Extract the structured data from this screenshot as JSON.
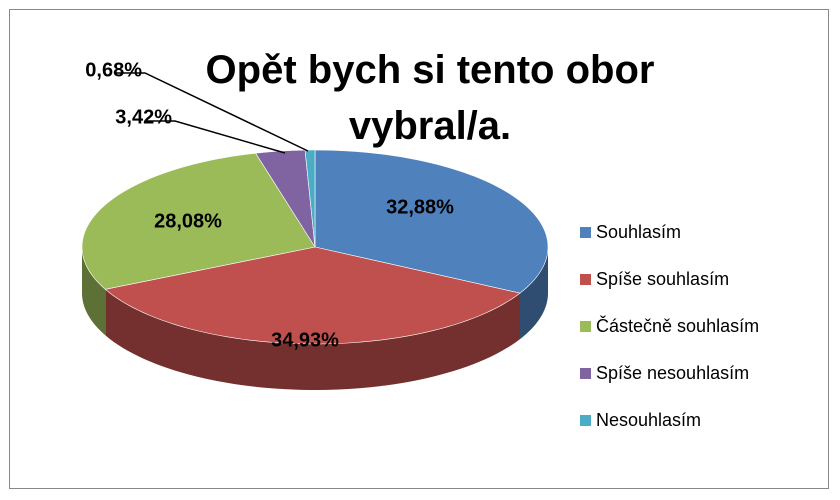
{
  "chart_data": {
    "type": "pie",
    "title": "Opět bych si tento obor vybral/a.",
    "categories": [
      "Souhlasím",
      "Spíše souhlasím",
      "Částečně souhlasím",
      "Spíše nesouhlasím",
      "Nesouhlasím"
    ],
    "values": [
      32.88,
      34.93,
      28.08,
      3.42,
      0.68
    ],
    "value_labels": [
      "32,88%",
      "34,93%",
      "28,08%",
      "3,42%",
      "0,68%"
    ],
    "colors": [
      "#4f81bd",
      "#c0504d",
      "#9bbb59",
      "#8064a2",
      "#4bacc6"
    ],
    "legend": "right"
  }
}
